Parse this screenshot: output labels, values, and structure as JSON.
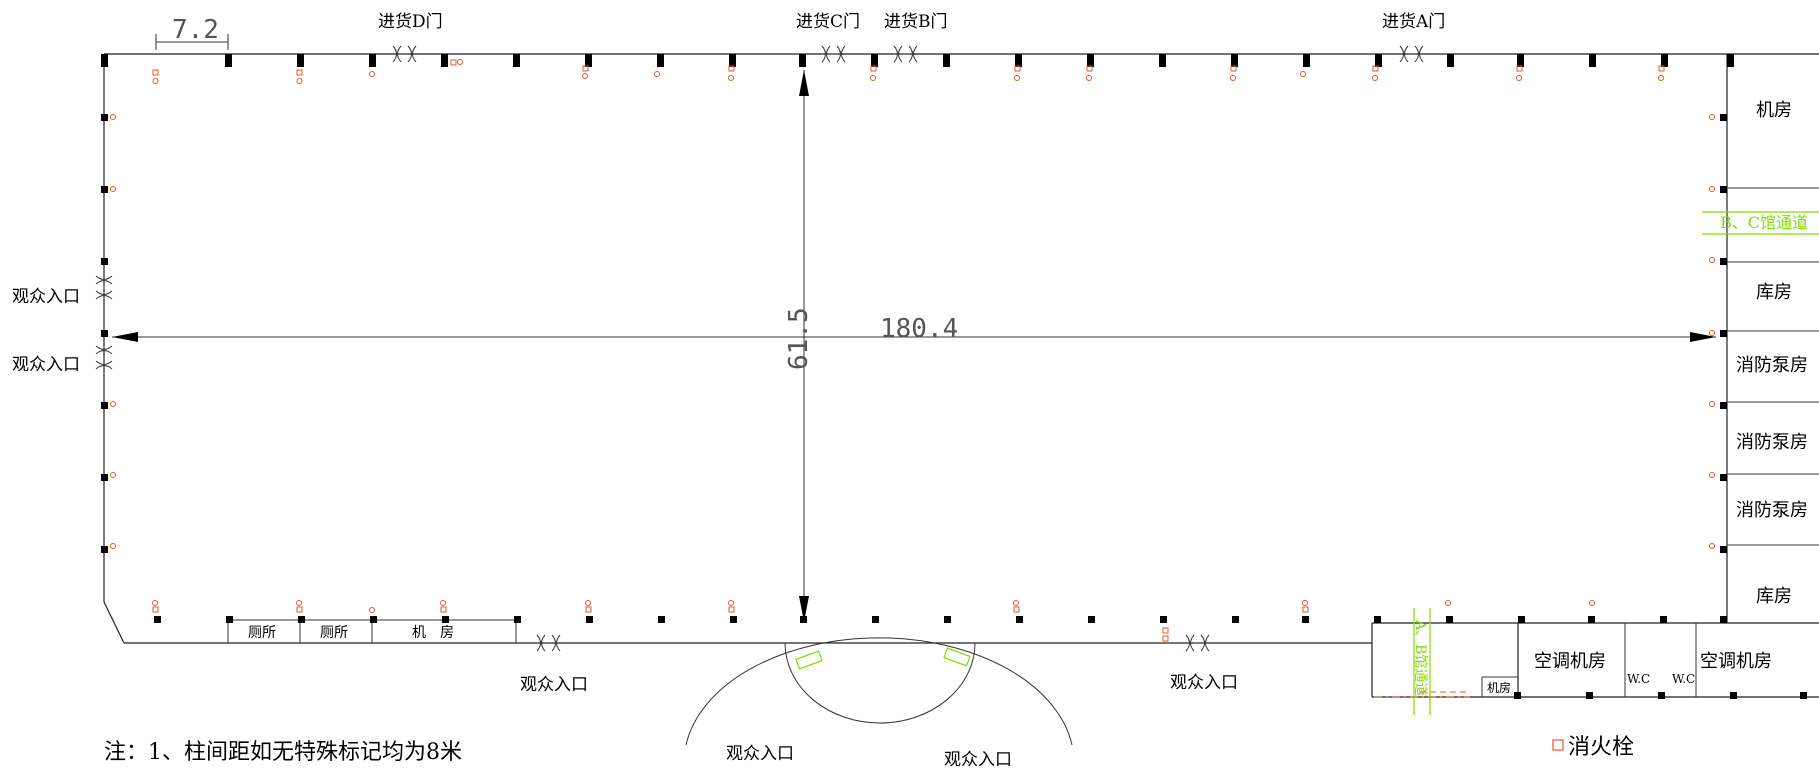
{
  "doors": {
    "goods_d": "进货D门",
    "goods_c": "进货C门",
    "goods_b": "进货B门",
    "goods_a": "进货A门"
  },
  "entrances": {
    "audience": "观众入口"
  },
  "rooms": {
    "machine_room": "机房",
    "bc_corridor": "B、C馆通道",
    "storage": "库房",
    "fire_pump_room": "消防泵房",
    "toilet": "厕所",
    "machine_room_spaced": "机　房",
    "ac_machine_room": "空调机房",
    "wc": "W.C",
    "ab_corridor": "A、B馆通道"
  },
  "dimensions": {
    "bay_spacing": "7.2",
    "total_length": "180.4",
    "total_width": "61.5"
  },
  "notes": {
    "note_1": "注：1、柱间距如无特殊标记均为8米"
  },
  "legend": {
    "hydrant": "消火栓"
  },
  "colors": {
    "wall": "#222222",
    "fire_equipment": "#e8572a",
    "corridor": "#7fe000"
  }
}
